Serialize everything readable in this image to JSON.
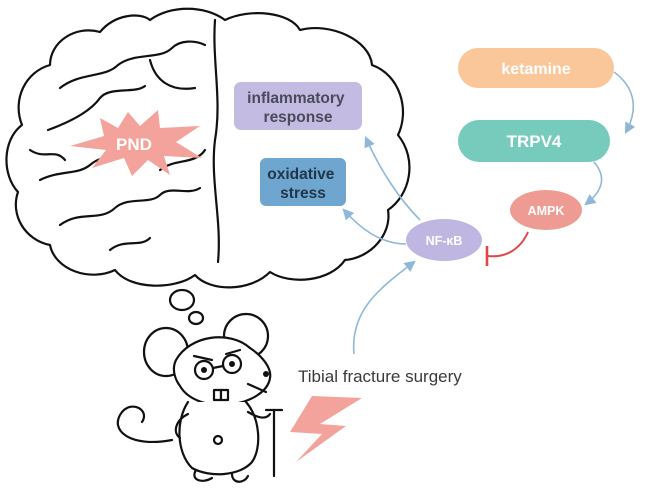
{
  "nodes": {
    "pnd": "PND",
    "ketamine": "ketamine",
    "trpv4": "TRPV4",
    "ampk": "AMPK",
    "nfkb": "NF-κB",
    "inflammatory": [
      "inflammatory",
      "response"
    ],
    "oxidative": [
      "oxidative",
      "stress"
    ],
    "surgery": "Tibial fracture surgery"
  },
  "colors": {
    "ketamine": "#f9c79a",
    "trpv4": "#76cbbd",
    "ampk": "#ee9b93",
    "nfkb": "#c0b6e2",
    "inflammatory": "#c3bbe1",
    "oxidative": "#6fa6cf",
    "pnd": "#f3a39b",
    "bolt": "#f3a39b",
    "arrow": "#8fb8d8",
    "inhibit": "#e04848"
  }
}
